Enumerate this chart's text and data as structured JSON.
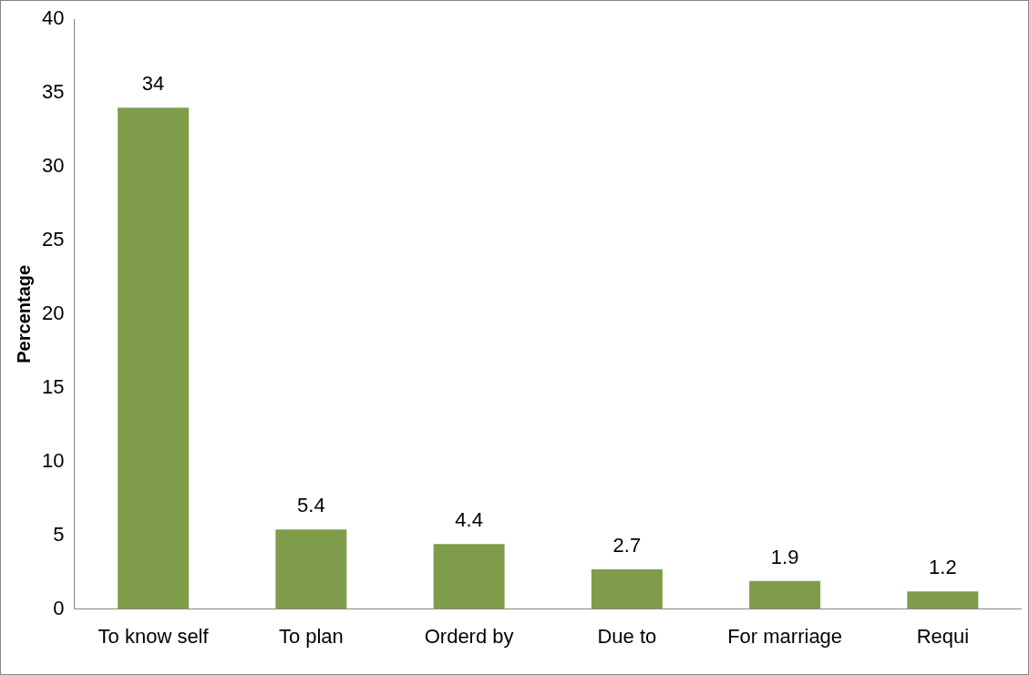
{
  "chart_data": {
    "type": "bar",
    "ylabel": "Percentage",
    "categories": [
      "To know self",
      "To plan",
      "Orderd by",
      "Due to",
      "For marriage",
      "Requi"
    ],
    "values": [
      34,
      5.4,
      4.4,
      2.7,
      1.9,
      1.2
    ],
    "color": "#7f9c4a",
    "ylim": [
      0,
      40
    ],
    "yticks": [
      0,
      5,
      10,
      15,
      20,
      25,
      30,
      35,
      40
    ],
    "grid": false,
    "legend": false,
    "data_labels": true
  }
}
